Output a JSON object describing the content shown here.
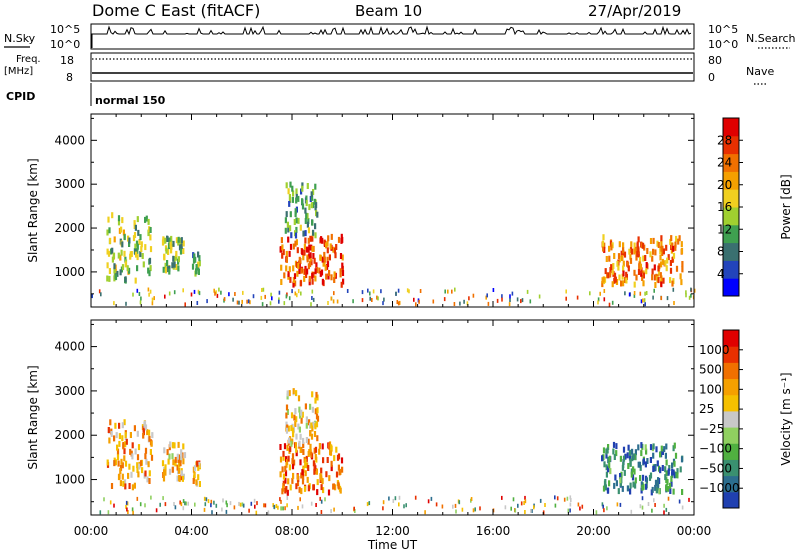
{
  "header": {
    "title": "Dome C East (fitACF)",
    "beam": "Beam 10",
    "date": "27/Apr/2019"
  },
  "strip_labels": {
    "nsky": "N.Sky",
    "nsky_hi": "10^5",
    "nsky_lo": "10^0",
    "nsearch": "N.Search",
    "nsearch_hi": "10^5",
    "nsearch_lo": "10^0",
    "freq": "Freq.",
    "freq_unit": "[MHz]",
    "freq_hi": "18",
    "freq_lo": "8",
    "nave": "Nave",
    "nave_hi": "80",
    "nave_lo": "0",
    "cpid": "CPID",
    "program": "normal 150"
  },
  "chart_data": [
    {
      "type": "heatmap",
      "panel": "power",
      "ylabel": "Slant Range [km]",
      "yticks": [
        1000,
        2000,
        3000,
        4000
      ],
      "ylim": [
        200,
        4600
      ],
      "xlim": [
        0,
        24
      ],
      "xticks": [
        "00:00",
        "04:00",
        "08:00",
        "12:00",
        "16:00",
        "20:00",
        "00:00"
      ],
      "xlabel": "",
      "colorbar": {
        "label": "Power [dB]",
        "ticks": [
          "4",
          "8",
          "12",
          "16",
          "20",
          "24",
          "28"
        ],
        "colors": [
          "#0000ff",
          "#2244bb",
          "#3a7070",
          "#3fa050",
          "#a0d030",
          "#f0d020",
          "#f5a000",
          "#f07000",
          "#e83000",
          "#e00000"
        ]
      },
      "echo_regions_hours_km": [
        {
          "t0": 0.6,
          "t1": 2.4,
          "r0": 800,
          "r1": 2300,
          "level": 0.45
        },
        {
          "t0": 2.8,
          "t1": 3.7,
          "r0": 1000,
          "r1": 1800,
          "level": 0.4
        },
        {
          "t0": 4.0,
          "t1": 4.3,
          "r0": 900,
          "r1": 1400,
          "level": 0.3
        },
        {
          "t0": 7.5,
          "t1": 10.0,
          "r0": 700,
          "r1": 1800,
          "level": 0.85
        },
        {
          "t0": 7.7,
          "t1": 9.0,
          "r0": 1800,
          "r1": 3000,
          "level": 0.3
        },
        {
          "t0": 20.3,
          "t1": 23.5,
          "r0": 700,
          "r1": 1800,
          "level": 0.75
        }
      ]
    },
    {
      "type": "heatmap",
      "panel": "velocity",
      "ylabel": "Slant Range [km]",
      "yticks": [
        1000,
        2000,
        3000,
        4000
      ],
      "ylim": [
        200,
        4600
      ],
      "xlim": [
        0,
        24
      ],
      "xticks": [
        "00:00",
        "04:00",
        "08:00",
        "12:00",
        "16:00",
        "20:00",
        "00:00"
      ],
      "xlabel": "Time UT",
      "colorbar": {
        "label": "Velocity [m s⁻¹]",
        "ticks": [
          "1000",
          "500",
          "100",
          "25",
          "−25",
          "−100",
          "−500",
          "−1000"
        ],
        "colors": [
          "#2040b0",
          "#2c6e8e",
          "#3a9070",
          "#50b040",
          "#90d060",
          "#c8c8c8",
          "#f5c000",
          "#f5a000",
          "#f07000",
          "#e83000",
          "#e00000"
        ]
      },
      "echo_regions_hours_km": [
        {
          "t0": 0.6,
          "t1": 2.4,
          "r0": 800,
          "r1": 2300,
          "level": 0.7
        },
        {
          "t0": 2.8,
          "t1": 3.7,
          "r0": 1000,
          "r1": 1800,
          "level": 0.65
        },
        {
          "t0": 4.0,
          "t1": 4.3,
          "r0": 900,
          "r1": 1400,
          "level": 0.7
        },
        {
          "t0": 7.5,
          "t1": 10.0,
          "r0": 700,
          "r1": 1800,
          "level": 0.8
        },
        {
          "t0": 7.7,
          "t1": 9.0,
          "r0": 1800,
          "r1": 3000,
          "level": 0.6
        },
        {
          "t0": 20.3,
          "t1": 23.5,
          "r0": 700,
          "r1": 1800,
          "level": 0.15
        }
      ]
    }
  ]
}
